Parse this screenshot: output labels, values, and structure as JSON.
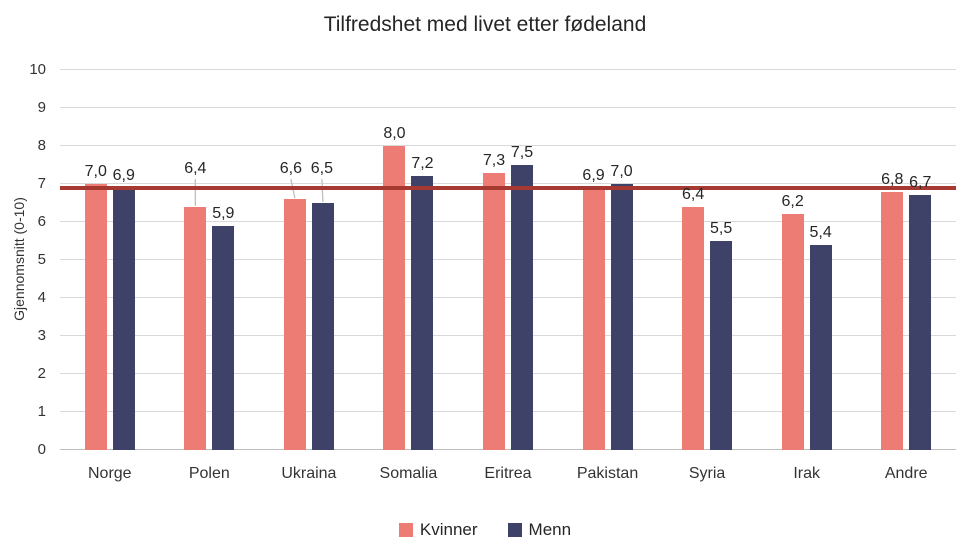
{
  "chart_data": {
    "type": "bar",
    "title": "Tilfredshet med livet etter fødeland",
    "ylabel": "Gjennomsnitt (0-10)",
    "categories": [
      "Norge",
      "Polen",
      "Ukraina",
      "Somalia",
      "Eritrea",
      "Pakistan",
      "Syria",
      "Irak",
      "Andre"
    ],
    "series": [
      {
        "name": "Kvinner",
        "color": "#EC7C74",
        "values": [
          7.0,
          6.4,
          6.6,
          8.0,
          7.3,
          6.9,
          6.4,
          6.2,
          6.8
        ]
      },
      {
        "name": "Menn",
        "color": "#3F4268",
        "values": [
          6.9,
          5.9,
          6.5,
          7.2,
          7.5,
          7.0,
          5.5,
          5.4,
          6.7
        ]
      }
    ],
    "ylim": [
      0,
      10
    ],
    "ytick_step": 1,
    "average_line": {
      "value": 6.9,
      "color": "#A63A33"
    },
    "grid": true,
    "legend_position": "bottom",
    "decimal_separator": ",",
    "label_callouts": [
      {
        "category": "Polen",
        "series": "Kvinner",
        "dx": 0
      },
      {
        "category": "Ukraina",
        "series": "Kvinner",
        "dx": -4
      },
      {
        "category": "Ukraina",
        "series": "Menn",
        "dx": -1
      }
    ],
    "colors": {
      "gridline": "#d9d9d9",
      "axisline": "#bfbfbf",
      "leader_line": "#bfbfbf",
      "text": "#333333"
    }
  }
}
